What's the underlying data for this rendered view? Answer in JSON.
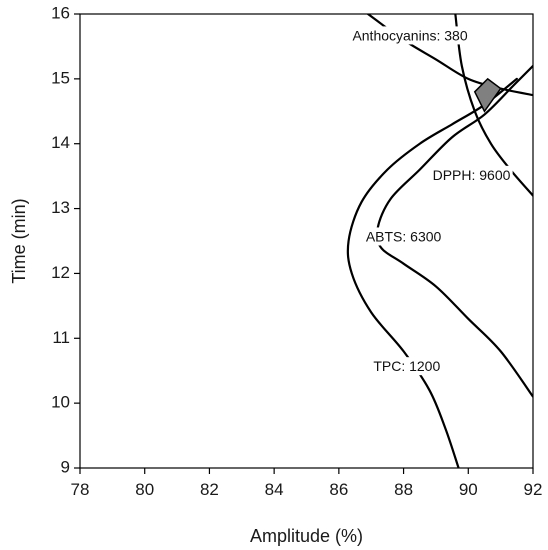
{
  "chart_data": {
    "type": "contour-overlay",
    "xlabel": "Amplitude (%)",
    "ylabel": "Time (min)",
    "xlim": [
      78,
      92
    ],
    "ylim": [
      9,
      16
    ],
    "x_ticks": [
      78,
      80,
      82,
      84,
      86,
      88,
      90,
      92
    ],
    "y_ticks": [
      9,
      10,
      11,
      12,
      13,
      14,
      15,
      16
    ],
    "grid": false,
    "series": [
      {
        "name": "Anthocyanins: 380",
        "points": [
          [
            86.9,
            16.0
          ],
          [
            88.0,
            15.6
          ],
          [
            89.0,
            15.3
          ],
          [
            90.0,
            15.0
          ],
          [
            91.0,
            14.85
          ],
          [
            92.0,
            14.75
          ]
        ]
      },
      {
        "name": "DPPH: 9600",
        "points": [
          [
            89.6,
            16.0
          ],
          [
            89.8,
            15.2
          ],
          [
            90.2,
            14.5
          ],
          [
            90.7,
            14.0
          ],
          [
            91.3,
            13.6
          ],
          [
            92.0,
            13.2
          ]
        ]
      },
      {
        "name": "ABTS: 6300",
        "points": [
          [
            92.0,
            15.2
          ],
          [
            91.4,
            14.9
          ],
          [
            90.5,
            14.45
          ],
          [
            89.5,
            14.1
          ],
          [
            88.5,
            13.6
          ],
          [
            87.6,
            13.15
          ],
          [
            87.2,
            12.7
          ],
          [
            87.3,
            12.4
          ],
          [
            88.0,
            12.15
          ],
          [
            89.0,
            11.8
          ],
          [
            90.0,
            11.3
          ],
          [
            91.0,
            10.8
          ],
          [
            92.0,
            10.1
          ]
        ]
      },
      {
        "name": "TPC: 1200",
        "points": [
          [
            91.5,
            15.0
          ],
          [
            90.5,
            14.6
          ],
          [
            89.5,
            14.3
          ],
          [
            88.5,
            14.0
          ],
          [
            87.5,
            13.6
          ],
          [
            86.7,
            13.1
          ],
          [
            86.3,
            12.5
          ],
          [
            86.4,
            12.0
          ],
          [
            87.0,
            11.4
          ],
          [
            88.0,
            10.8
          ],
          [
            88.8,
            10.2
          ],
          [
            89.3,
            9.6
          ],
          [
            89.7,
            9.0
          ]
        ]
      }
    ],
    "labels": [
      {
        "text": "Anthocyanins: 380",
        "x": 88.2,
        "y": 15.65
      },
      {
        "text": "DPPH: 9600",
        "x": 90.1,
        "y": 13.5
      },
      {
        "text": "ABTS: 6300",
        "x": 88.0,
        "y": 12.55
      },
      {
        "text": "TPC: 1200",
        "x": 88.1,
        "y": 10.55
      }
    ],
    "shaded_region": [
      [
        90.2,
        14.8
      ],
      [
        90.6,
        15.0
      ],
      [
        91.0,
        14.85
      ],
      [
        90.5,
        14.5
      ]
    ],
    "shaded_color": "#808080"
  }
}
